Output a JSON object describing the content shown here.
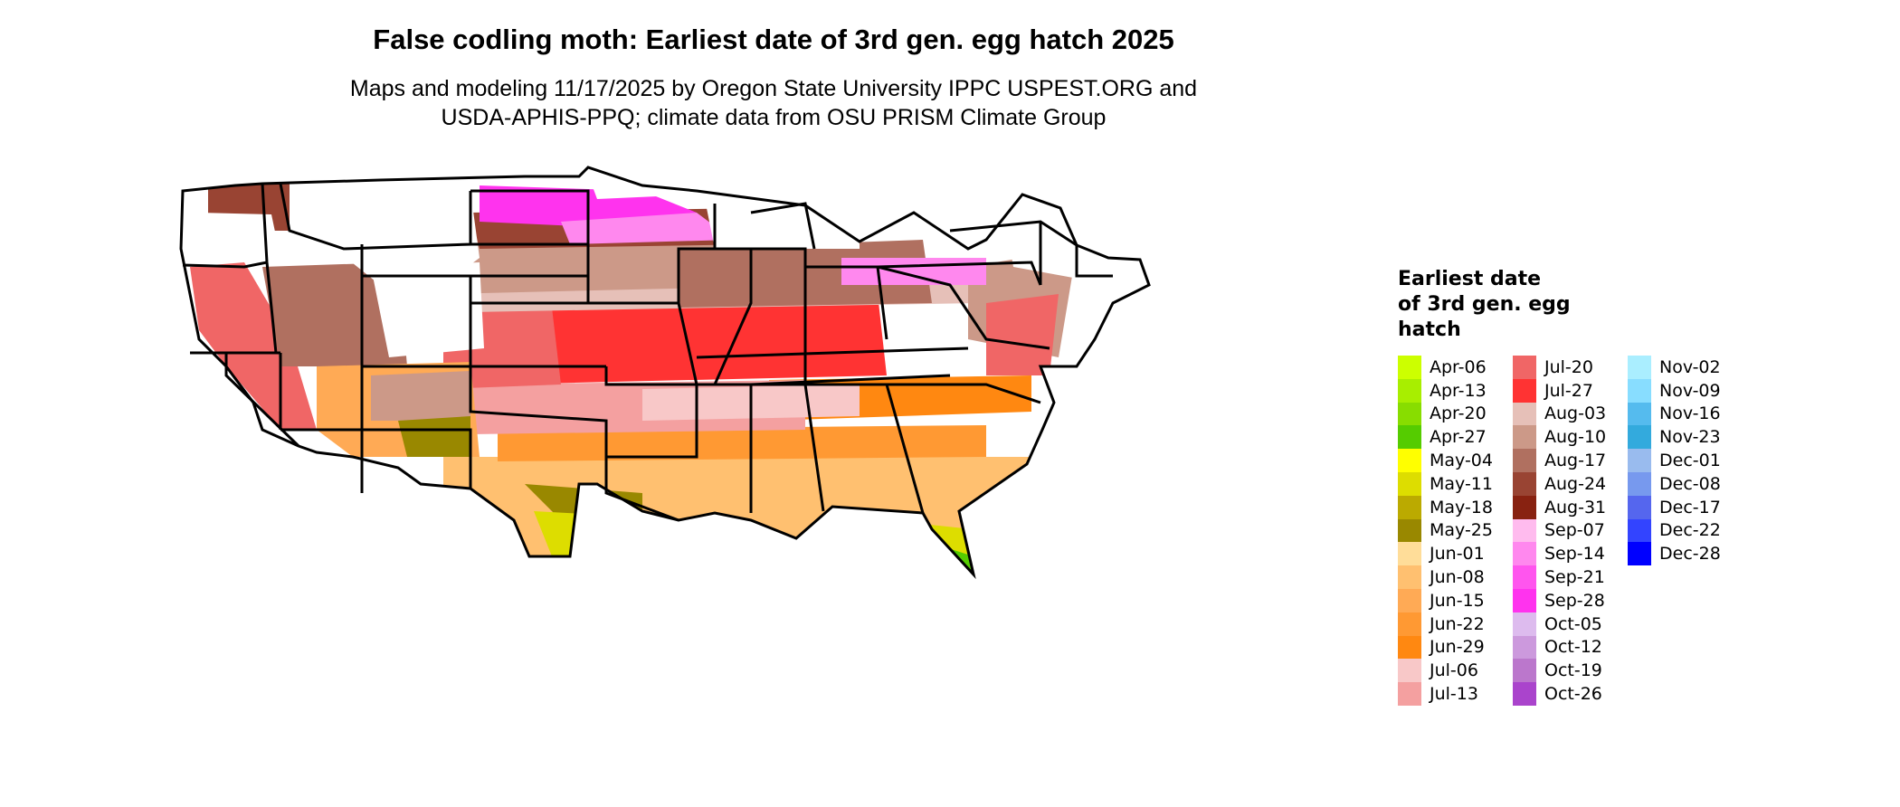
{
  "title": "False codling moth: Earliest date of 3rd gen. egg hatch 2025",
  "subtitle_lines": [
    "Maps and modeling 11/17/2025 by Oregon State University IPPC USPEST.ORG and",
    "USDA-APHIS-PPQ; climate data from OSU PRISM Climate Group"
  ],
  "legend": {
    "title_lines": [
      "Earliest date",
      "of 3rd gen. egg",
      "hatch"
    ],
    "columns": [
      [
        {
          "label": "Apr-06",
          "color": "#ccff00"
        },
        {
          "label": "Apr-13",
          "color": "#a8ee00"
        },
        {
          "label": "Apr-20",
          "color": "#88dd00"
        },
        {
          "label": "Apr-27",
          "color": "#55cc00"
        },
        {
          "label": "May-04",
          "color": "#ffff00"
        },
        {
          "label": "May-11",
          "color": "#dddd00"
        },
        {
          "label": "May-18",
          "color": "#bbaa00"
        },
        {
          "label": "May-25",
          "color": "#998800"
        },
        {
          "label": "Jun-01",
          "color": "#ffdd99"
        },
        {
          "label": "Jun-08",
          "color": "#ffc070"
        },
        {
          "label": "Jun-15",
          "color": "#ffaa55"
        },
        {
          "label": "Jun-22",
          "color": "#ff9933"
        },
        {
          "label": "Jun-29",
          "color": "#ff8811"
        },
        {
          "label": "Jul-06",
          "color": "#f8c8c8"
        },
        {
          "label": "Jul-13",
          "color": "#f4a0a0"
        }
      ],
      [
        {
          "label": "Jul-20",
          "color": "#f06666"
        },
        {
          "label": "Jul-27",
          "color": "#ff3333"
        },
        {
          "label": "Aug-03",
          "color": "#e6c0b8"
        },
        {
          "label": "Aug-10",
          "color": "#cc9988"
        },
        {
          "label": "Aug-17",
          "color": "#b07060"
        },
        {
          "label": "Aug-24",
          "color": "#994433"
        },
        {
          "label": "Aug-31",
          "color": "#882211"
        },
        {
          "label": "Sep-07",
          "color": "#ffbbee"
        },
        {
          "label": "Sep-14",
          "color": "#ff88ee"
        },
        {
          "label": "Sep-21",
          "color": "#ff55ee"
        },
        {
          "label": "Sep-28",
          "color": "#ff33ee"
        },
        {
          "label": "Oct-05",
          "color": "#ddbbee"
        },
        {
          "label": "Oct-12",
          "color": "#cc99dd"
        },
        {
          "label": "Oct-19",
          "color": "#bb77cc"
        },
        {
          "label": "Oct-26",
          "color": "#aa44cc"
        }
      ],
      [
        {
          "label": "Nov-02",
          "color": "#aaeeff"
        },
        {
          "label": "Nov-09",
          "color": "#88ddff"
        },
        {
          "label": "Nov-16",
          "color": "#55bbee"
        },
        {
          "label": "Nov-23",
          "color": "#33aadd"
        },
        {
          "label": "Dec-01",
          "color": "#99bbee"
        },
        {
          "label": "Dec-08",
          "color": "#7799ee"
        },
        {
          "label": "Dec-17",
          "color": "#5566ee"
        },
        {
          "label": "Dec-22",
          "color": "#3344ff"
        },
        {
          "label": "Dec-28",
          "color": "#0000ff"
        }
      ]
    ]
  },
  "map_colors": {
    "not_reached": "#ffffff",
    "border": "#000000"
  }
}
